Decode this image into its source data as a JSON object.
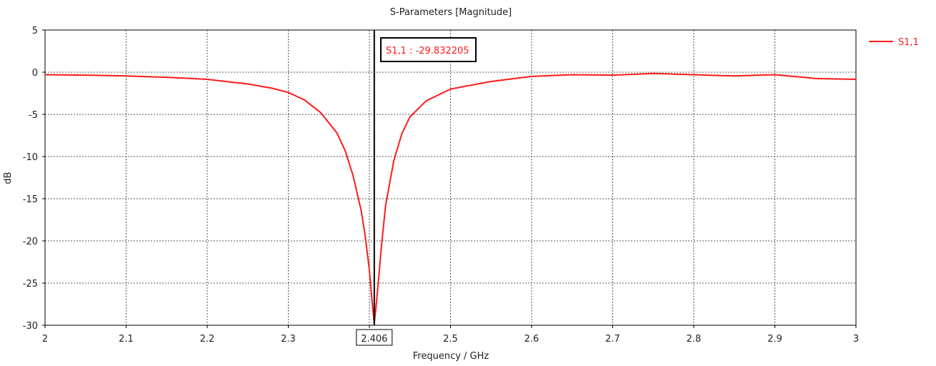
{
  "chart_data": {
    "type": "line",
    "title": "S-Parameters [Magnitude]",
    "xlabel": "Frequency / GHz",
    "ylabel": "dB",
    "xlim": [
      2,
      3
    ],
    "ylim": [
      -30,
      5
    ],
    "x_ticks": [
      "2",
      "2.1",
      "2.2",
      "2.3",
      "2.4",
      "2.5",
      "2.6",
      "2.7",
      "2.8",
      "2.9",
      "3"
    ],
    "y_ticks": [
      "5",
      "0",
      "-5",
      "-10",
      "-15",
      "-20",
      "-25",
      "-30"
    ],
    "grid": true,
    "legend_position": "top-right",
    "series": [
      {
        "name": "S1,1",
        "color": "#ff1a1a",
        "x": [
          2.0,
          2.05,
          2.1,
          2.15,
          2.2,
          2.25,
          2.28,
          2.3,
          2.32,
          2.34,
          2.36,
          2.37,
          2.38,
          2.39,
          2.395,
          2.4,
          2.403,
          2.406,
          2.409,
          2.412,
          2.415,
          2.42,
          2.43,
          2.44,
          2.45,
          2.47,
          2.5,
          2.55,
          2.6,
          2.65,
          2.7,
          2.75,
          2.8,
          2.85,
          2.9,
          2.95,
          3.0
        ],
        "y": [
          -0.3,
          -0.35,
          -0.45,
          -0.6,
          -0.85,
          -1.4,
          -1.9,
          -2.4,
          -3.3,
          -4.8,
          -7.2,
          -9.3,
          -12.3,
          -16.5,
          -19.5,
          -23.5,
          -26.8,
          -29.83,
          -27.0,
          -23.8,
          -20.5,
          -15.8,
          -10.5,
          -7.3,
          -5.3,
          -3.4,
          -2.0,
          -1.1,
          -0.5,
          -0.3,
          -0.35,
          -0.15,
          -0.3,
          -0.45,
          -0.3,
          -0.75,
          -0.85
        ]
      }
    ],
    "marker": {
      "x": 2.406,
      "x_label": "2.406",
      "text": "S1,1 : -29.832205"
    }
  }
}
